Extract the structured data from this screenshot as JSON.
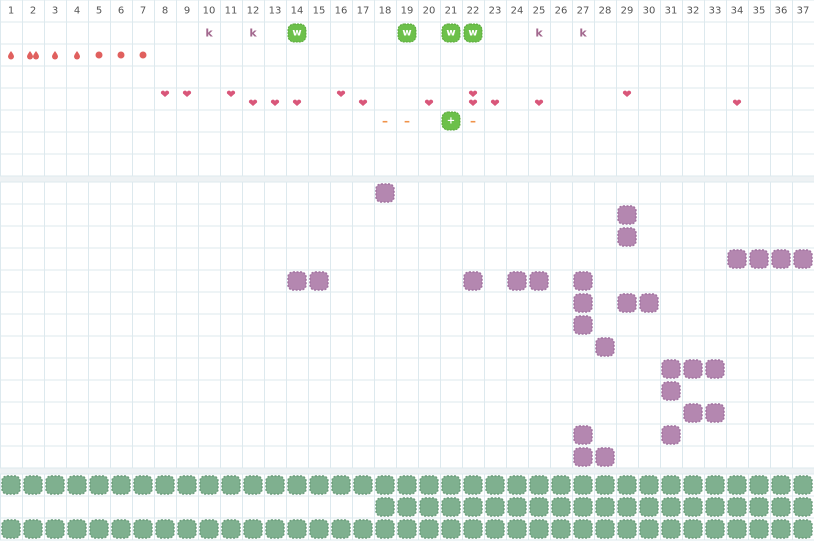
{
  "header": {
    "days": [
      1,
      2,
      3,
      4,
      5,
      6,
      7,
      8,
      9,
      10,
      11,
      12,
      13,
      14,
      15,
      16,
      17,
      18,
      19,
      20,
      21,
      22,
      23,
      24,
      25,
      26,
      27,
      28,
      29,
      30,
      31,
      32,
      33,
      34,
      35,
      36,
      37
    ]
  },
  "tracker": {
    "letters": [
      {
        "day": 10,
        "text": "k"
      },
      {
        "day": 12,
        "text": "k"
      },
      {
        "day": 25,
        "text": "k"
      },
      {
        "day": 27,
        "text": "k"
      }
    ],
    "badges": [
      {
        "day": 14,
        "text": "w"
      },
      {
        "day": 19,
        "text": "w"
      },
      {
        "day": 21,
        "text": "w"
      },
      {
        "day": 22,
        "text": "w"
      }
    ],
    "drops_single": [
      1,
      3,
      4
    ],
    "drops_double": [
      2
    ],
    "dots": [
      5,
      6,
      7
    ],
    "hearts_upper": [
      8,
      9,
      11,
      16,
      22,
      29
    ],
    "hearts_lower": [
      12,
      13,
      14,
      17,
      20,
      22,
      23,
      25,
      34
    ],
    "dashes": [
      {
        "day": 18,
        "text": "–"
      },
      {
        "day": 19,
        "text": "–"
      },
      {
        "day": 22,
        "text": "–"
      }
    ],
    "plus": [
      {
        "day": 21,
        "text": "+"
      }
    ]
  },
  "middle": {
    "rows": [
      [
        18
      ],
      [
        29
      ],
      [
        29
      ],
      [
        34,
        35,
        36,
        37
      ],
      [
        14,
        15,
        22,
        24,
        25,
        27
      ],
      [
        27,
        29,
        30
      ],
      [
        27
      ],
      [
        28
      ],
      [
        31,
        32,
        33
      ],
      [
        31
      ],
      [
        32,
        33
      ],
      [
        27,
        31
      ],
      [
        27,
        28
      ]
    ]
  },
  "bottom": {
    "rows": [
      [
        1,
        2,
        3,
        4,
        5,
        6,
        7,
        8,
        9,
        10,
        11,
        12,
        13,
        14,
        15,
        16,
        17,
        18,
        19,
        20,
        21,
        22,
        23,
        24,
        25,
        26,
        27,
        28,
        29,
        30,
        31,
        32,
        33,
        34,
        35,
        36,
        37
      ],
      [
        18,
        19,
        20,
        21,
        22,
        23,
        24,
        25,
        26,
        27,
        28,
        29,
        30,
        31,
        32,
        33,
        34,
        35,
        36,
        37
      ],
      [
        1,
        2,
        3,
        4,
        5,
        6,
        7,
        8,
        9,
        10,
        11,
        12,
        13,
        14,
        15,
        16,
        17,
        18,
        19,
        20,
        21,
        22,
        23,
        24,
        25,
        26,
        27,
        28,
        29,
        30,
        31,
        32,
        33,
        34,
        35,
        36,
        37
      ]
    ]
  }
}
